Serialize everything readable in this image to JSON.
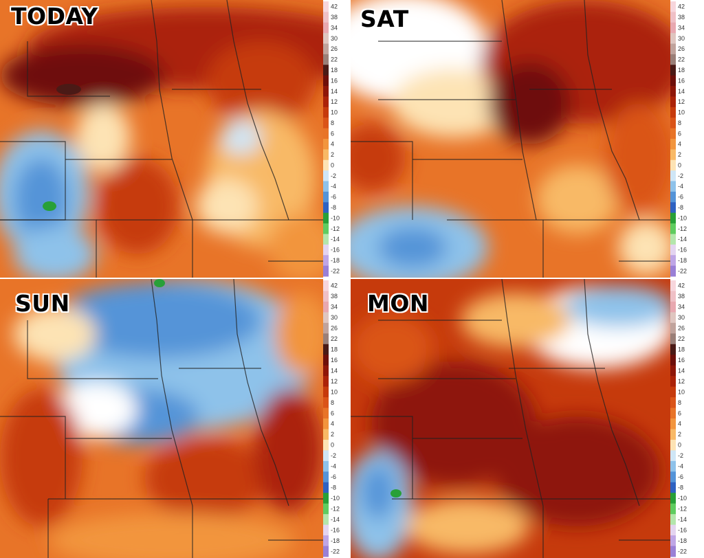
{
  "panels": [
    {
      "label": "TODAY"
    },
    {
      "label": "SAT"
    },
    {
      "label": "SUN"
    },
    {
      "label": "MON"
    }
  ],
  "legend": {
    "ticks": [
      "42",
      "38",
      "34",
      "30",
      "26",
      "22",
      "18",
      "16",
      "14",
      "12",
      "10",
      "8",
      "6",
      "4",
      "2",
      "0",
      "-2",
      "-4",
      "-6",
      "-8",
      "-10",
      "-12",
      "-14",
      "-16",
      "-18",
      "-22"
    ],
    "colors": [
      "#f7d6dc",
      "#efc0c6",
      "#e8a8b0",
      "#dfc6c0",
      "#c0a39c",
      "#9a7f78",
      "#4a1a16",
      "#6e0f0a",
      "#8e1608",
      "#ab2208",
      "#c63a0c",
      "#da5418",
      "#e87428",
      "#f2953e",
      "#f8b966",
      "#fde3b4",
      "#cfe6f6",
      "#8ec2ea",
      "#5594d8",
      "#2f62c2",
      "#28a038",
      "#5fcc60",
      "#b4e6ac",
      "#e4d4f0",
      "#bfa6e6",
      "#9a80d6"
    ]
  }
}
